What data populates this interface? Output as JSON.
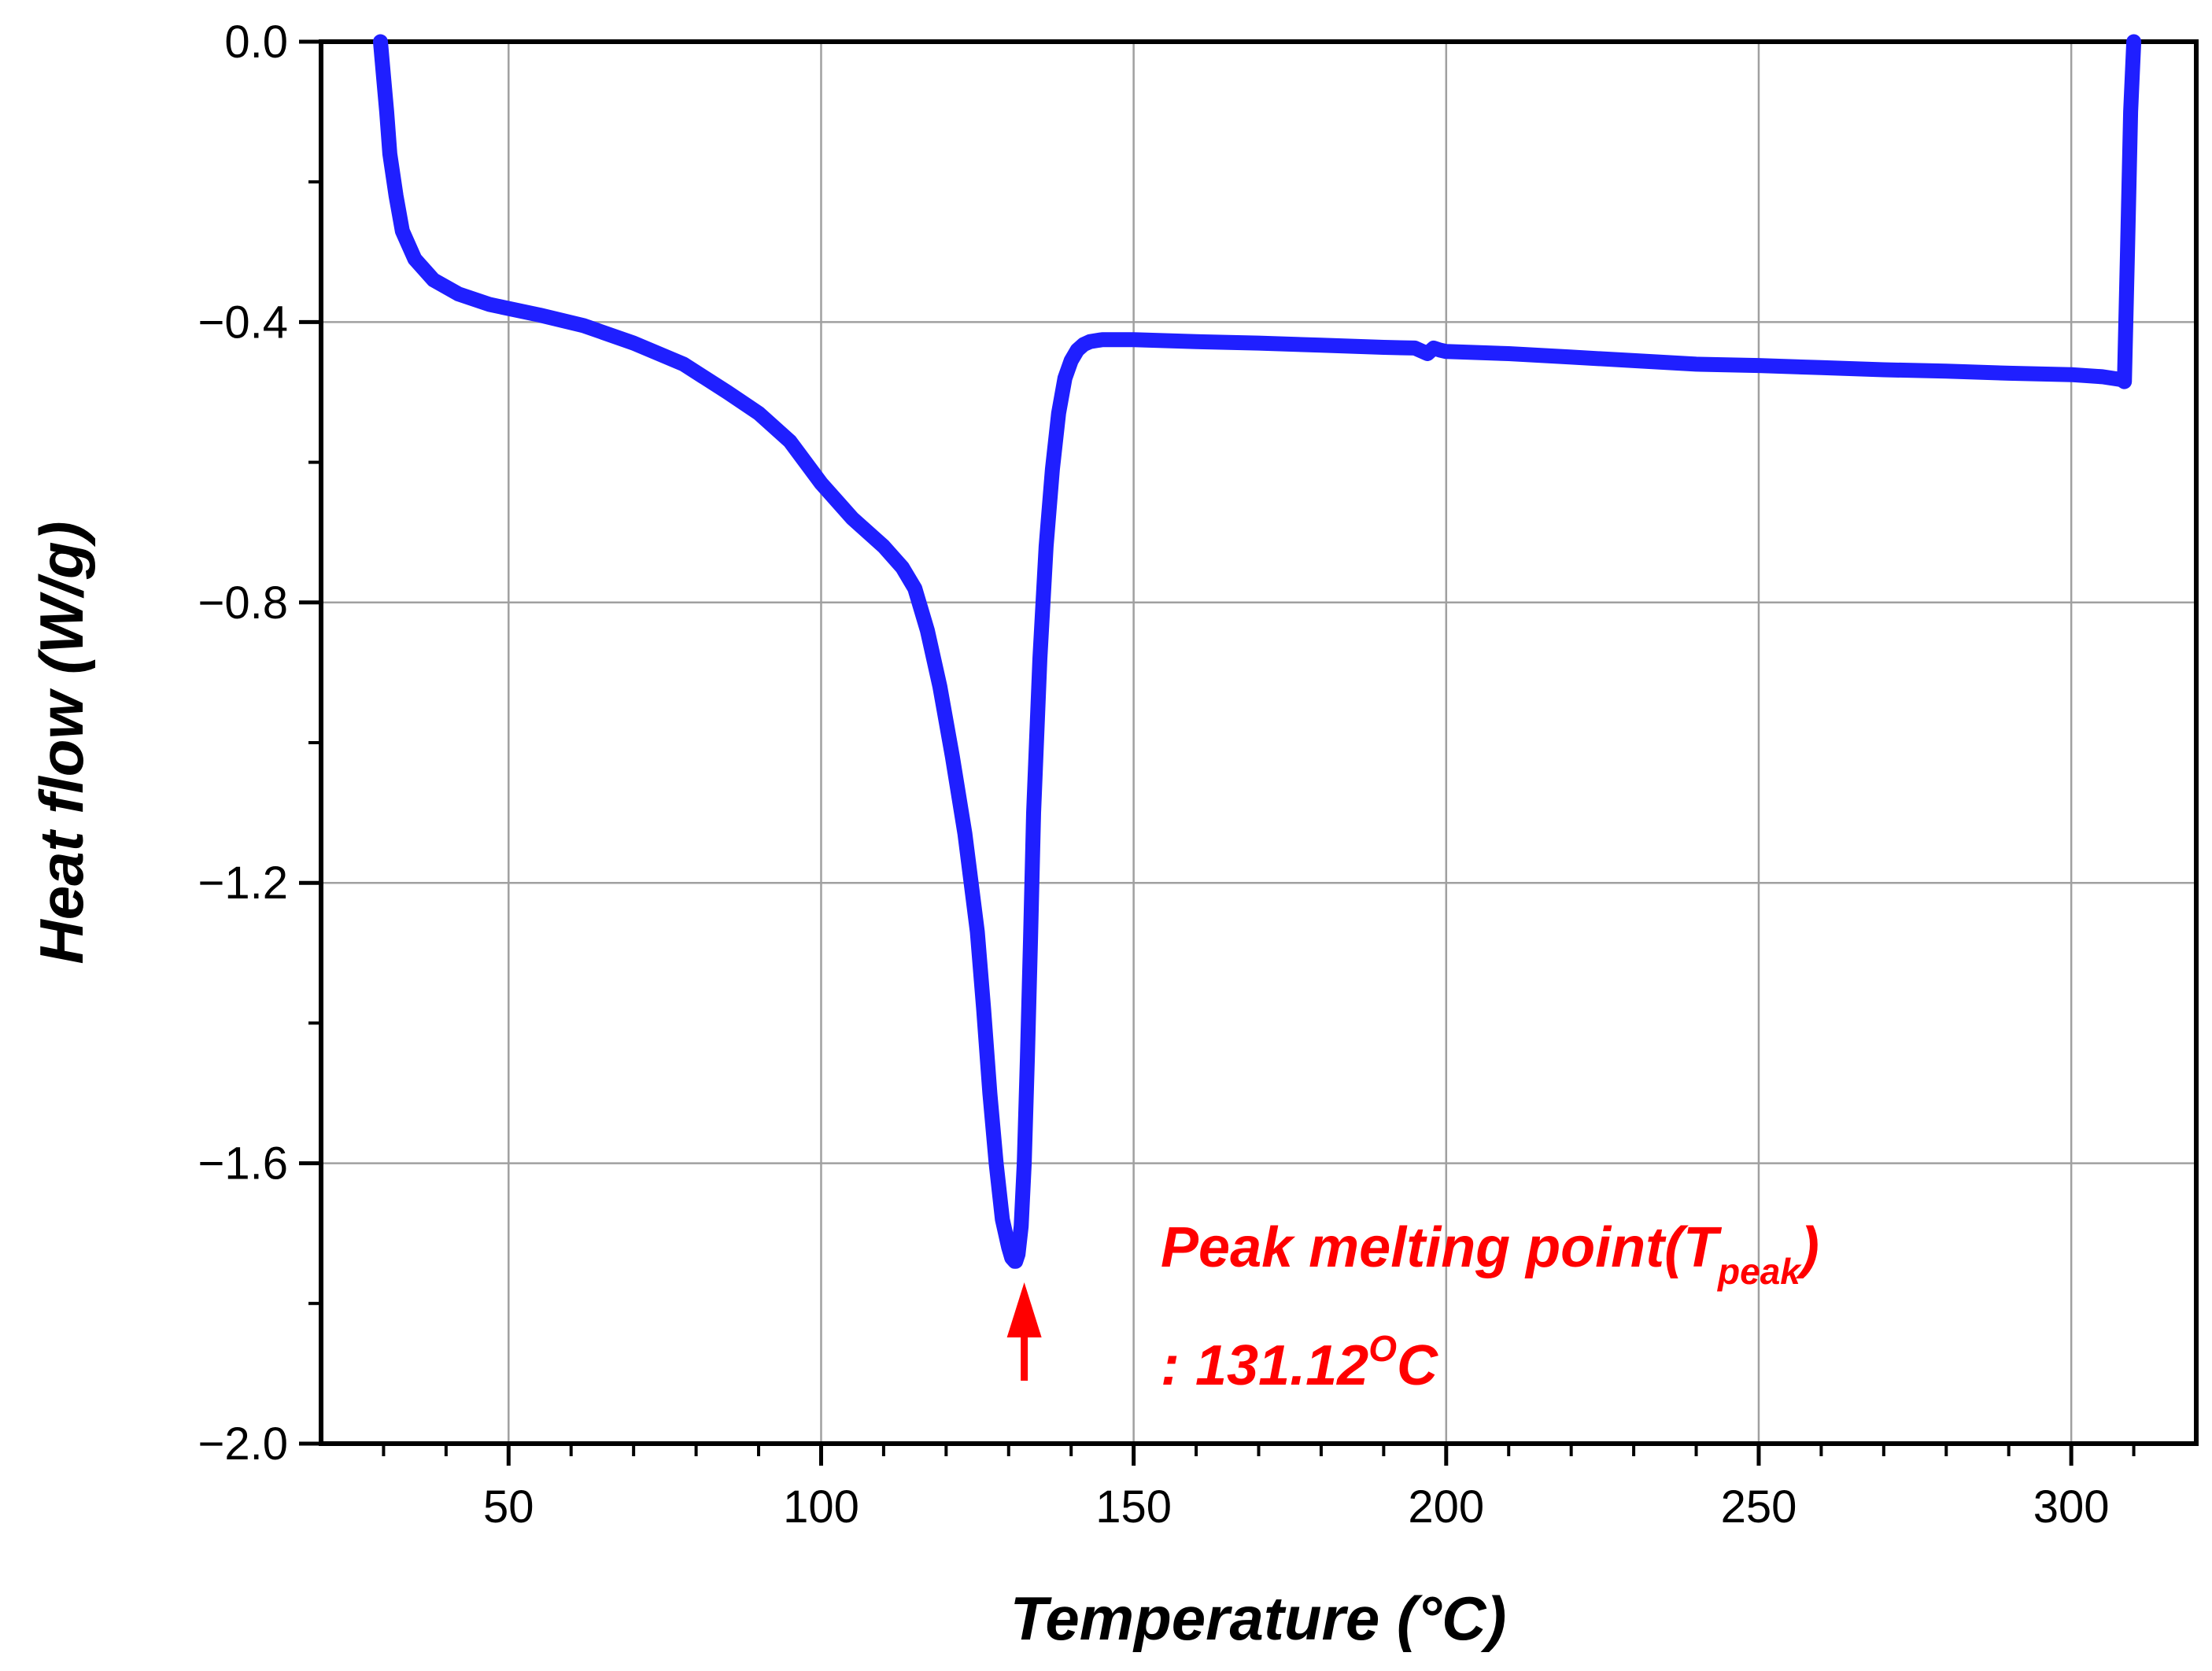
{
  "chart_data": {
    "type": "line",
    "xlabel": "Temperature (°C)",
    "ylabel": "Heat flow (W/g)",
    "xlim": [
      20,
      320
    ],
    "ylim": [
      -2.0,
      0.0
    ],
    "xticks": [
      50,
      100,
      150,
      200,
      250,
      300
    ],
    "xtick_labels": [
      "50",
      "100",
      "150",
      "200",
      "250",
      "300"
    ],
    "yticks": [
      0.0,
      -0.4,
      -0.8,
      -1.2,
      -1.6,
      -2.0
    ],
    "ytick_labels": [
      "0.0",
      "−0.4",
      "−0.8",
      "−1.2",
      "−1.6",
      "−2.0"
    ],
    "grid": true,
    "series": [
      {
        "color": "#1f1fff",
        "x": [
          29.5,
          30,
          30.5,
          31,
          32,
          33,
          35,
          38,
          42,
          47,
          55,
          62,
          70,
          78,
          85,
          90,
          95,
          100,
          105,
          110,
          113,
          115,
          117,
          119,
          121,
          123,
          125,
          126,
          127,
          128,
          129,
          130,
          130.5,
          131,
          131.12,
          131.5,
          132,
          132.5,
          133,
          133.5,
          134,
          135,
          136,
          137,
          138,
          139,
          140,
          141,
          142,
          143,
          145,
          150,
          160,
          170,
          180,
          190,
          195,
          197,
          198,
          199,
          200,
          210,
          220,
          230,
          240,
          250,
          260,
          270,
          280,
          290,
          300,
          305,
          308,
          308.5,
          309,
          309.5,
          310
        ],
        "y": [
          0.0,
          -0.05,
          -0.1,
          -0.16,
          -0.22,
          -0.27,
          -0.31,
          -0.34,
          -0.36,
          -0.375,
          -0.39,
          -0.405,
          -0.43,
          -0.46,
          -0.5,
          -0.53,
          -0.57,
          -0.63,
          -0.68,
          -0.72,
          -0.75,
          -0.78,
          -0.84,
          -0.92,
          -1.02,
          -1.13,
          -1.27,
          -1.38,
          -1.5,
          -1.6,
          -1.68,
          -1.72,
          -1.735,
          -1.74,
          -1.74,
          -1.73,
          -1.69,
          -1.6,
          -1.45,
          -1.28,
          -1.1,
          -0.88,
          -0.72,
          -0.61,
          -0.53,
          -0.48,
          -0.455,
          -0.44,
          -0.432,
          -0.428,
          -0.425,
          -0.425,
          -0.428,
          -0.43,
          -0.433,
          -0.436,
          -0.437,
          -0.445,
          -0.437,
          -0.44,
          -0.442,
          -0.445,
          -0.45,
          -0.455,
          -0.46,
          -0.462,
          -0.465,
          -0.468,
          -0.47,
          -0.473,
          -0.475,
          -0.478,
          -0.482,
          -0.485,
          -0.3,
          -0.1,
          0.0
        ]
      }
    ],
    "annotation": {
      "line1": "Peak melting point(T",
      "subscript": "peak",
      "close": ")",
      "line2_prefix": ": 131.12",
      "superscript": "O",
      "line2_suffix": "C",
      "color": "#ff0000",
      "arrow_x": 132.5
    }
  }
}
